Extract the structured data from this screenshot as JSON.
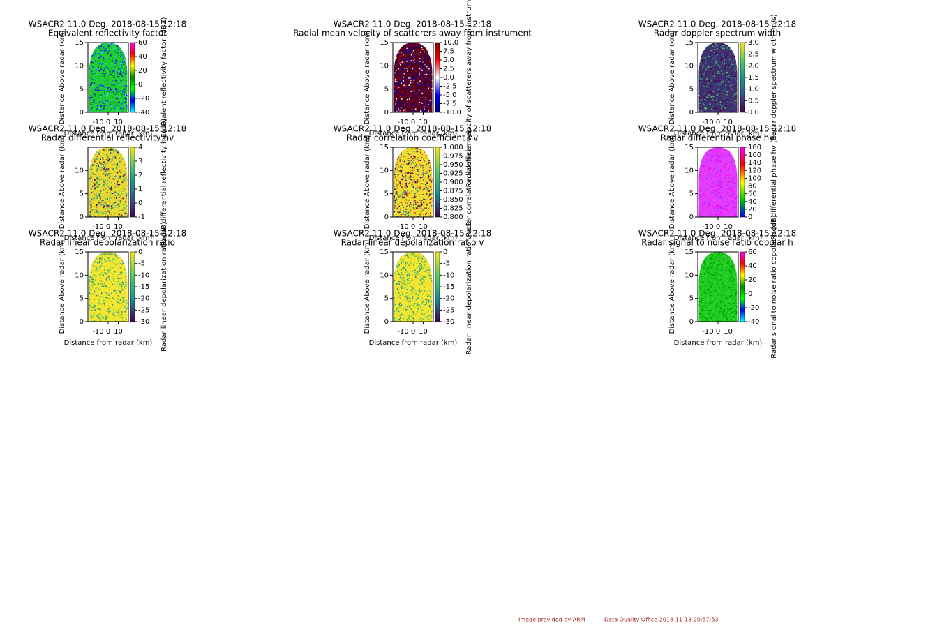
{
  "chart_data": [
    {
      "type": "radar-image",
      "title": "WSACR2 11.0 Deg. 2018-08-15 12:18",
      "subtitle": "Equivalent reflectivity factor",
      "xlabel": "Distance from radar (km)",
      "ylabel": "Distance Above radar (km)",
      "colorbar_label": "Equivalent reflectivity factor (dBZ)",
      "xlim": [
        -20,
        20
      ],
      "ylim": [
        0,
        15
      ],
      "xticks": [
        -10,
        0,
        10
      ],
      "yticks": [
        0,
        5,
        10,
        15
      ],
      "clim": [
        -40,
        60
      ],
      "cticks": [
        -40,
        -20,
        0,
        20,
        40,
        60
      ],
      "colormap": [
        "#00ffff",
        "#0000ff",
        "#00ff00",
        "#008800",
        "#ffff00",
        "#ff0000",
        "#ff00ff"
      ],
      "background": "#22cc33",
      "pixel_colors": [
        "#0044ff",
        "#00aa00",
        "#0000cc",
        "#33ccff",
        "#22dd22"
      ]
    },
    {
      "type": "radar-image",
      "title": "WSACR2 11.0 Deg. 2018-08-15 12:18",
      "subtitle": "Radial mean velocity of scatterers away from instrument",
      "xlabel": "Distance from radar (km)",
      "ylabel": "Distance Above radar (km)",
      "colorbar_label": "Radial mean velocity of scatterers away from instrument (m/s)",
      "xlim": [
        -20,
        20
      ],
      "ylim": [
        0,
        15
      ],
      "xticks": [
        -10,
        0,
        10
      ],
      "yticks": [
        0,
        5,
        10,
        15
      ],
      "clim": [
        -10,
        10
      ],
      "cticks": [
        {
          "value": -10,
          "label": "-10.0"
        },
        {
          "value": -7.5,
          "label": "-7.5"
        },
        {
          "value": -5,
          "label": "-5.0"
        },
        {
          "value": -2.5,
          "label": "-2.5"
        },
        {
          "value": 0,
          "label": "0.0"
        },
        {
          "value": 2.5,
          "label": "2.5"
        },
        {
          "value": 5,
          "label": "5.0"
        },
        {
          "value": 7.5,
          "label": "7.5"
        },
        {
          "value": 10,
          "label": "10.0"
        }
      ],
      "colormap": [
        "#000080",
        "#0000ff",
        "#ffffff",
        "#ff0000",
        "#800000"
      ],
      "background": "#550022",
      "pixel_colors": [
        "#000080",
        "#cc0000",
        "#ffffff",
        "#660000",
        "#0000cc"
      ]
    },
    {
      "type": "radar-image",
      "title": "WSACR2 11.0 Deg. 2018-08-15 12:18",
      "subtitle": "Radar doppler spectrum width",
      "xlabel": "Distance from radar (km)",
      "ylabel": "Distance Above radar (km)",
      "colorbar_label": "Radar doppler spectrum width (m/s)",
      "xlim": [
        -20,
        20
      ],
      "ylim": [
        0,
        15
      ],
      "xticks": [
        -10,
        0,
        10
      ],
      "yticks": [
        0,
        5,
        10,
        15
      ],
      "clim": [
        0,
        3
      ],
      "cticks": [
        {
          "value": 0,
          "label": "0.0"
        },
        {
          "value": 0.5,
          "label": "0.5"
        },
        {
          "value": 1,
          "label": "1.0"
        },
        {
          "value": 1.5,
          "label": "1.5"
        },
        {
          "value": 2,
          "label": "2.0"
        },
        {
          "value": 2.5,
          "label": "2.5"
        },
        {
          "value": 3,
          "label": "3.0"
        }
      ],
      "colormap": [
        "#440154",
        "#3b528b",
        "#21918c",
        "#5ec962",
        "#fde725"
      ],
      "background": "#3e2f6e",
      "pixel_colors": [
        "#46327e",
        "#2a788e",
        "#5ec962",
        "#440154"
      ]
    },
    {
      "type": "radar-image",
      "title": "WSACR2 11.0 Deg. 2018-08-15 12:18",
      "subtitle": "Radar differential reflectivity hv",
      "xlabel": "Distance from radar (km)",
      "ylabel": "Distance Above radar (km)",
      "colorbar_label": "Radar differential reflectivity hv (dB)",
      "xlim": [
        -20,
        20
      ],
      "ylim": [
        0,
        15
      ],
      "xticks": [
        -10,
        0,
        10
      ],
      "yticks": [
        0,
        5,
        10
      ],
      "clim": [
        -1,
        4
      ],
      "cticks": [
        -1,
        0,
        1,
        2,
        3,
        4
      ],
      "colormap": [
        "#440154",
        "#3b528b",
        "#21918c",
        "#5ec962",
        "#fde725"
      ],
      "background": "#e8d830",
      "pixel_colors": [
        "#440154",
        "#21918c",
        "#fde725",
        "#5ec962"
      ]
    },
    {
      "type": "radar-image",
      "title": "WSACR2 11.0 Deg. 2018-08-15 12:18",
      "subtitle": "Radar correlation coefficient hv",
      "xlabel": "Distance from radar (km)",
      "ylabel": "Distance Above radar (km)",
      "colorbar_label": "Radar correlation coefficient hv",
      "xlim": [
        -20,
        20
      ],
      "ylim": [
        0,
        15
      ],
      "xticks": [
        -10,
        0,
        10
      ],
      "yticks": [
        0,
        5,
        10,
        15
      ],
      "clim": [
        0.8,
        1
      ],
      "cticks": [
        {
          "value": 0.8,
          "label": "0.800"
        },
        {
          "value": 0.825,
          "label": "0.825"
        },
        {
          "value": 0.85,
          "label": "0.850"
        },
        {
          "value": 0.875,
          "label": "0.875"
        },
        {
          "value": 0.9,
          "label": "0.900"
        },
        {
          "value": 0.925,
          "label": "0.925"
        },
        {
          "value": 0.95,
          "label": "0.950"
        },
        {
          "value": 0.975,
          "label": "0.975"
        },
        {
          "value": 1,
          "label": "1.000"
        }
      ],
      "colormap": [
        "#440154",
        "#21918c",
        "#5ec962",
        "#fde725"
      ],
      "background": "#f0dc30",
      "pixel_colors": [
        "#440154",
        "#cc2222",
        "#fde725",
        "#21918c"
      ]
    },
    {
      "type": "radar-image",
      "title": "WSACR2 11.0 Deg. 2018-08-15 12:18",
      "subtitle": "Radar differential phase hv",
      "xlabel": "Distance from radar (km)",
      "ylabel": "Distance Above radar (km)",
      "colorbar_label": "Radar differential phase hv (deg)",
      "xlim": [
        -20,
        20
      ],
      "ylim": [
        0,
        15
      ],
      "xticks": [
        -10,
        0,
        10
      ],
      "yticks": [
        0,
        5,
        10,
        15
      ],
      "clim": [
        0,
        180
      ],
      "cticks": [
        0,
        20,
        40,
        60,
        80,
        100,
        120,
        140,
        160,
        180
      ],
      "colormap": [
        "#0000ff",
        "#00cc00",
        "#ffff00",
        "#ff0000",
        "#ff00ff"
      ],
      "background": "#e040ff",
      "pixel_colors": [
        "#ff00ff",
        "#cc33ff",
        "#ff33cc",
        "#aa22ff"
      ]
    },
    {
      "type": "radar-image",
      "title": "WSACR2 11.0 Deg. 2018-08-15 12:18",
      "subtitle": "Radar linear depolarization ratio",
      "xlabel": "Distance from radar (km)",
      "ylabel": "Distance Above radar (km)",
      "colorbar_label": "Radar linear depolarization ratio (dB)",
      "xlim": [
        -20,
        20
      ],
      "ylim": [
        0,
        15
      ],
      "xticks": [
        -10,
        0,
        10
      ],
      "yticks": [
        0,
        5,
        10,
        15
      ],
      "clim": [
        -30,
        0
      ],
      "cticks": [
        -30,
        -25,
        -20,
        -15,
        -10,
        -5,
        0
      ],
      "colormap": [
        "#440154",
        "#21918c",
        "#5ec962",
        "#fde725"
      ],
      "background": "#f2e630",
      "pixel_colors": [
        "#5ec962",
        "#21918c",
        "#fde725"
      ]
    },
    {
      "type": "radar-image",
      "title": "WSACR2 11.0 Deg. 2018-08-15 12:18",
      "subtitle": "Radar linear depolarization ratio v",
      "xlabel": "Distance from radar (km)",
      "ylabel": "Distance Above radar (km)",
      "colorbar_label": "Radar linear depolarization ratio v (dB)",
      "xlim": [
        -20,
        20
      ],
      "ylim": [
        0,
        15
      ],
      "xticks": [
        -10,
        0,
        10
      ],
      "yticks": [
        0,
        5,
        10,
        15
      ],
      "clim": [
        -30,
        0
      ],
      "cticks": [
        -30,
        -25,
        -20,
        -15,
        -10,
        -5,
        0
      ],
      "colormap": [
        "#440154",
        "#21918c",
        "#5ec962",
        "#fde725"
      ],
      "background": "#f2e630",
      "pixel_colors": [
        "#5ec962",
        "#21918c",
        "#fde725"
      ]
    },
    {
      "type": "radar-image",
      "title": "WSACR2 11.0 Deg. 2018-08-15 12:18",
      "subtitle": "Radar signal to noise ratio copolar h",
      "xlabel": "Distance from radar (km)",
      "ylabel": "Distance Above radar (km)",
      "colorbar_label": "Radar signal to noise ratio copolar h (dB)",
      "xlim": [
        -20,
        20
      ],
      "ylim": [
        0,
        15
      ],
      "xticks": [
        -10,
        0,
        10
      ],
      "yticks": [
        0,
        5,
        10,
        15
      ],
      "clim": [
        -40,
        60
      ],
      "cticks": [
        -40,
        -20,
        0,
        20,
        40,
        60
      ],
      "colormap": [
        "#00ffff",
        "#0000ff",
        "#00ff00",
        "#008800",
        "#ffff00",
        "#ff0000",
        "#ff00ff"
      ],
      "background": "#22cc22",
      "pixel_colors": [
        "#00aa00",
        "#33dd33",
        "#009900"
      ]
    }
  ],
  "footer": {
    "credit": "Image provided by ARM",
    "office": "Data Quality Office 2018-11-13 20:57:53"
  }
}
